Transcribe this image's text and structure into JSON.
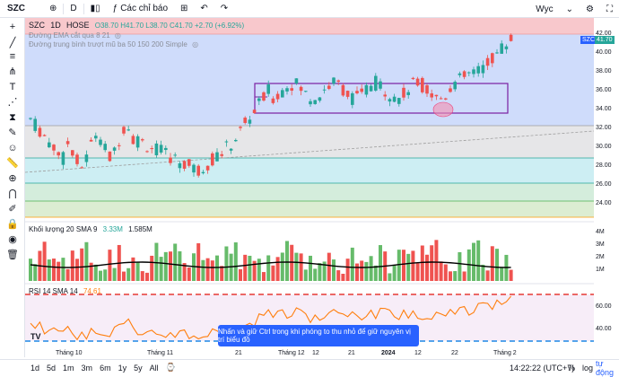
{
  "toolbar": {
    "symbol": "SZC",
    "interval": "D",
    "indicators_label": "Các chỉ báo",
    "layout_name": "Wyc"
  },
  "legend": {
    "symbol": "SZC",
    "interval": "1D",
    "exchange": "HOSE",
    "open": "O38.70",
    "high": "H41.70",
    "low": "L38.70",
    "close": "C41.70",
    "change": "+2.70 (+6.92%)",
    "ema_label": "Đường EMA cắt qua 8 21",
    "sma_label": "Đường trung bình trượt mũ ba 50 150 200 Simple"
  },
  "volume_legend": {
    "label": "Khối lượng 20 SMA 9",
    "value1": "3.33M",
    "value2": "1.585M"
  },
  "rsi_legend": {
    "label": "RSI 14 SMA 14",
    "value": "74.61"
  },
  "price_axis": {
    "ticks": [
      "42.00",
      "40.00",
      "38.00",
      "36.00",
      "34.00",
      "32.00",
      "30.00",
      "28.00",
      "26.00",
      "24.00"
    ],
    "symbol_tag": "SZC",
    "last_price": "41.70"
  },
  "volume_axis": {
    "ticks": [
      "4M",
      "3M",
      "2M",
      "1M"
    ]
  },
  "rsi_axis": {
    "ticks": [
      "60.00",
      "40.00"
    ]
  },
  "time_axis": {
    "labels": [
      "Tháng 10",
      "Tháng 11",
      "21",
      "Tháng 12",
      "12",
      "21",
      "2024",
      "12",
      "22",
      "Tháng 2"
    ]
  },
  "toast": {
    "text": "Nhấn và giữ Ctrl trong khi phóng to thu nhỏ để giữ nguyên vị trí biểu đồ"
  },
  "bottombar": {
    "ranges": [
      "1d",
      "5d",
      "1m",
      "3m",
      "6m",
      "1y",
      "5y",
      "All"
    ],
    "time": "14:22:22 (UTC+7)",
    "percent": "%",
    "log": "log",
    "auto": "tự động"
  },
  "colors": {
    "up": "#26a69a",
    "down": "#ef5350",
    "accent": "#2962ff",
    "box": "#7b1fa2"
  }
}
